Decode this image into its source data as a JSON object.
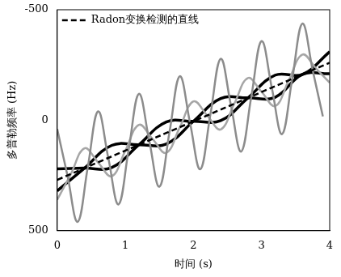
{
  "chart_data": {
    "type": "line",
    "x_label": "时间 (s)",
    "y_label": "多普勒频率 (Hz)",
    "xlim": [
      0,
      4
    ],
    "xticks": [
      0,
      1,
      2,
      3,
      4
    ],
    "ylim": [
      500,
      -500
    ],
    "yticks": [
      -500,
      0,
      500
    ],
    "grid": false,
    "legend": "upper left",
    "series": [
      {
        "color": "#8c8c8c",
        "line_style": "solid",
        "x": [
          0,
          0.15,
          0.3,
          0.45,
          0.6,
          0.75,
          0.9,
          1.05,
          1.2,
          1.35,
          1.5,
          1.65,
          1.8,
          1.95,
          2.1,
          2.25,
          2.4,
          2.55,
          2.7,
          2.85,
          3.0,
          3.15,
          3.3,
          3.45,
          3.6,
          3.75,
          3.9
        ],
        "values": [
          40,
          250,
          460,
          210,
          -40,
          171,
          381,
          131,
          -119,
          91,
          301,
          51,
          -199,
          12,
          222,
          -28,
          -278,
          -68,
          142,
          -108,
          -358,
          -147,
          63,
          -187,
          -437,
          -227,
          -17
        ]
      },
      {
        "color": "#a6a6a6",
        "line_style": "solid",
        "x": [
          0,
          0.2,
          0.4,
          0.6,
          0.8,
          1.0,
          1.2,
          1.4,
          1.6,
          1.8,
          2.0,
          2.2,
          2.4,
          2.6,
          2.8,
          3.0,
          3.2,
          3.4,
          3.6,
          3.8,
          4.0
        ],
        "values": [
          360,
          244,
          127,
          191,
          254,
          138,
          21,
          85,
          148,
          32,
          -85,
          -22,
          42,
          -75,
          -191,
          -128,
          -64,
          -181,
          -297,
          -234,
          -170
        ]
      },
      {
        "color": "#000000",
        "line_style": "solid",
        "x": [
          0,
          0.4,
          0.8,
          1.2,
          1.6,
          2.0,
          2.4,
          2.8,
          3.2,
          3.6,
          4.0
        ],
        "values": [
          320,
          217,
          114,
          111,
          108,
          5,
          -98,
          -101,
          -104,
          -207,
          -210
        ]
      },
      {
        "color": "#000000",
        "line_style": "solid",
        "x": [
          0,
          0.4,
          0.8,
          1.2,
          1.6,
          2.0,
          2.4,
          2.8,
          3.2,
          3.6,
          4.0
        ],
        "values": [
          220,
          217,
          214,
          111,
          8,
          5,
          2,
          -101,
          -204,
          -207,
          -310
        ]
      },
      {
        "name": "Radon变换检测的直线",
        "color": "#000000",
        "line_style": "dashed",
        "x": [
          0,
          4
        ],
        "values": [
          270,
          -260
        ]
      }
    ]
  }
}
